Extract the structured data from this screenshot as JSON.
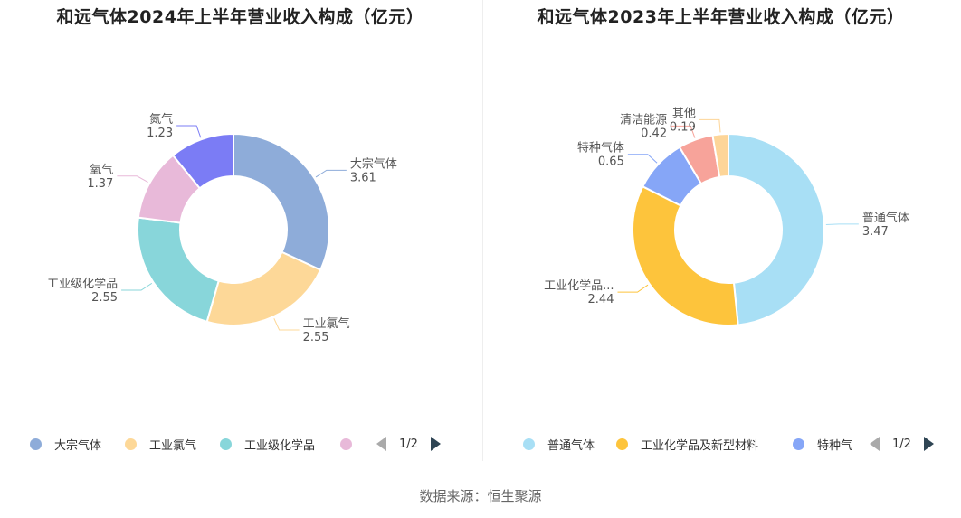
{
  "source": "数据来源：恒生聚源",
  "chart_data": [
    {
      "type": "pie",
      "title": "和远气体2024年上半年营业收入构成（亿元）",
      "categories": [
        "大宗气体",
        "工业氯气",
        "工业级化学品",
        "氧气",
        "氮气"
      ],
      "values": [
        3.61,
        2.55,
        2.55,
        1.37,
        1.23
      ],
      "value_labels": [
        "3.61",
        "2.55",
        "2.55",
        "1.37",
        "1.23"
      ],
      "colors": [
        "#8eacd9",
        "#fdd898",
        "#88d6da",
        "#e8b9d9",
        "#7b7cf5"
      ],
      "slice_names": [
        "大宗气体",
        "工业氯气",
        "工业级化学品",
        "氧气",
        "氮气"
      ],
      "legend": {
        "entries": [
          "大宗气体",
          "工业氯气",
          "工业级化学品",
          ""
        ],
        "colors": [
          "#8eacd9",
          "#fdd898",
          "#88d6da",
          "#e8b9d9"
        ],
        "page": "1/2"
      }
    },
    {
      "type": "pie",
      "title": "和远气体2023年上半年营业收入构成（亿元）",
      "categories": [
        "普通气体",
        "工业化学品及新型材料",
        "特种气体",
        "清洁能源",
        "其他"
      ],
      "values": [
        3.47,
        2.44,
        0.65,
        0.42,
        0.19
      ],
      "value_labels": [
        "3.47",
        "2.44",
        "0.65",
        "0.42",
        "0.19"
      ],
      "colors": [
        "#a8dff5",
        "#fdc43c",
        "#86a6f7",
        "#f7a39a",
        "#fdd598"
      ],
      "slice_names": [
        "普通气体",
        "工业化学品...",
        "特种气体",
        "清洁能源",
        "其他"
      ],
      "legend": {
        "entries": [
          "普通气体",
          "工业化学品及新型材料",
          "特种气"
        ],
        "colors": [
          "#a8dff5",
          "#fdc43c",
          "#86a6f7"
        ],
        "page": "1/2"
      }
    }
  ]
}
